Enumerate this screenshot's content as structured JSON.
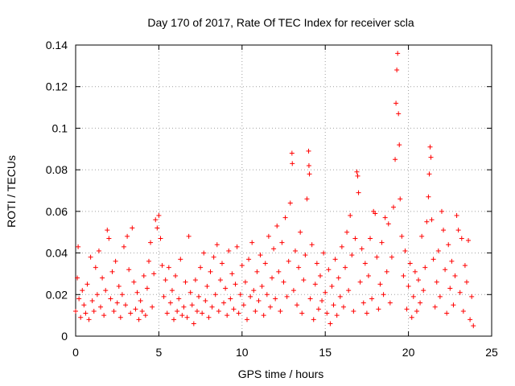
{
  "chart_data": {
    "type": "scatter",
    "title": "Day 170 of 2017, Rate Of TEC Index for receiver scla",
    "xlabel": "GPS time / hours",
    "ylabel": "ROTI / TECUs",
    "xlim": [
      0,
      25
    ],
    "ylim": [
      0,
      0.14
    ],
    "xticks": [
      0,
      5,
      10,
      15,
      20,
      25
    ],
    "xtick_labels": [
      "0",
      "5",
      "10",
      "15",
      "20",
      "25"
    ],
    "yticks": [
      0,
      0.02,
      0.04,
      0.06,
      0.08,
      0.1,
      0.12,
      0.14
    ],
    "ytick_labels": [
      "0",
      "0.02",
      "0.04",
      "0.06",
      "0.08",
      "0.1",
      "0.12",
      "0.14"
    ],
    "grid": true,
    "marker": "+",
    "color": "#ff0000",
    "series": [
      {
        "name": "ROTI",
        "points": [
          [
            0.0,
            0.012
          ],
          [
            0.1,
            0.028
          ],
          [
            0.15,
            0.043
          ],
          [
            0.2,
            0.018
          ],
          [
            0.3,
            0.009
          ],
          [
            0.4,
            0.022
          ],
          [
            0.5,
            0.015
          ],
          [
            0.6,
            0.011
          ],
          [
            0.7,
            0.025
          ],
          [
            0.8,
            0.008
          ],
          [
            0.9,
            0.038
          ],
          [
            1.0,
            0.017
          ],
          [
            1.1,
            0.012
          ],
          [
            1.2,
            0.033
          ],
          [
            1.3,
            0.02
          ],
          [
            1.4,
            0.041
          ],
          [
            1.5,
            0.014
          ],
          [
            1.6,
            0.028
          ],
          [
            1.7,
            0.01
          ],
          [
            1.8,
            0.022
          ],
          [
            1.9,
            0.051
          ],
          [
            2.0,
            0.047
          ],
          [
            2.1,
            0.018
          ],
          [
            2.2,
            0.031
          ],
          [
            2.3,
            0.012
          ],
          [
            2.4,
            0.036
          ],
          [
            2.5,
            0.016
          ],
          [
            2.6,
            0.024
          ],
          [
            2.7,
            0.009
          ],
          [
            2.8,
            0.02
          ],
          [
            2.9,
            0.043
          ],
          [
            3.0,
            0.015
          ],
          [
            3.1,
            0.048
          ],
          [
            3.2,
            0.032
          ],
          [
            3.3,
            0.011
          ],
          [
            3.4,
            0.052
          ],
          [
            3.5,
            0.026
          ],
          [
            3.6,
            0.013
          ],
          [
            3.7,
            0.021
          ],
          [
            3.8,
            0.008
          ],
          [
            3.9,
            0.017
          ],
          [
            4.0,
            0.012
          ],
          [
            4.1,
            0.029
          ],
          [
            4.2,
            0.01
          ],
          [
            4.3,
            0.023
          ],
          [
            4.4,
            0.036
          ],
          [
            4.5,
            0.045
          ],
          [
            4.6,
            0.014
          ],
          [
            4.7,
            0.03
          ],
          [
            4.8,
            0.056
          ],
          [
            4.9,
            0.052
          ],
          [
            5.0,
            0.058
          ],
          [
            5.1,
            0.047
          ],
          [
            5.2,
            0.034
          ],
          [
            5.3,
            0.019
          ],
          [
            5.4,
            0.027
          ],
          [
            5.5,
            0.011
          ],
          [
            5.6,
            0.033
          ],
          [
            5.7,
            0.016
          ],
          [
            5.8,
            0.022
          ],
          [
            5.9,
            0.008
          ],
          [
            6.0,
            0.029
          ],
          [
            6.1,
            0.012
          ],
          [
            6.2,
            0.018
          ],
          [
            6.3,
            0.037
          ],
          [
            6.4,
            0.01
          ],
          [
            6.5,
            0.014
          ],
          [
            6.6,
            0.026
          ],
          [
            6.7,
            0.009
          ],
          [
            6.8,
            0.048
          ],
          [
            6.9,
            0.021
          ],
          [
            7.0,
            0.015
          ],
          [
            7.1,
            0.006
          ],
          [
            7.2,
            0.027
          ],
          [
            7.3,
            0.012
          ],
          [
            7.4,
            0.019
          ],
          [
            7.5,
            0.033
          ],
          [
            7.6,
            0.011
          ],
          [
            7.7,
            0.04
          ],
          [
            7.8,
            0.017
          ],
          [
            7.9,
            0.024
          ],
          [
            8.0,
            0.009
          ],
          [
            8.1,
            0.031
          ],
          [
            8.2,
            0.014
          ],
          [
            8.3,
            0.038
          ],
          [
            8.4,
            0.02
          ],
          [
            8.5,
            0.044
          ],
          [
            8.6,
            0.012
          ],
          [
            8.7,
            0.027
          ],
          [
            8.8,
            0.035
          ],
          [
            8.9,
            0.016
          ],
          [
            9.0,
            0.023
          ],
          [
            9.1,
            0.01
          ],
          [
            9.2,
            0.041
          ],
          [
            9.3,
            0.018
          ],
          [
            9.4,
            0.03
          ],
          [
            9.5,
            0.013
          ],
          [
            9.6,
            0.025
          ],
          [
            9.7,
            0.043
          ],
          [
            9.8,
            0.011
          ],
          [
            9.9,
            0.02
          ],
          [
            10.0,
            0.034
          ],
          [
            10.1,
            0.015
          ],
          [
            10.2,
            0.026
          ],
          [
            10.3,
            0.008
          ],
          [
            10.4,
            0.037
          ],
          [
            10.5,
            0.019
          ],
          [
            10.6,
            0.045
          ],
          [
            10.7,
            0.022
          ],
          [
            10.8,
            0.012
          ],
          [
            10.9,
            0.031
          ],
          [
            11.0,
            0.017
          ],
          [
            11.1,
            0.039
          ],
          [
            11.2,
            0.024
          ],
          [
            11.3,
            0.01
          ],
          [
            11.4,
            0.035
          ],
          [
            11.5,
            0.02
          ],
          [
            11.6,
            0.048
          ],
          [
            11.7,
            0.014
          ],
          [
            11.8,
            0.028
          ],
          [
            11.9,
            0.042
          ],
          [
            12.0,
            0.018
          ],
          [
            12.1,
            0.053
          ],
          [
            12.2,
            0.031
          ],
          [
            12.3,
            0.012
          ],
          [
            12.4,
            0.045
          ],
          [
            12.5,
            0.026
          ],
          [
            12.6,
            0.057
          ],
          [
            12.7,
            0.019
          ],
          [
            12.8,
            0.036
          ],
          [
            12.9,
            0.064
          ],
          [
            13.0,
            0.088
          ],
          [
            13.02,
            0.083
          ],
          [
            13.1,
            0.022
          ],
          [
            13.2,
            0.041
          ],
          [
            13.3,
            0.015
          ],
          [
            13.4,
            0.033
          ],
          [
            13.5,
            0.05
          ],
          [
            13.6,
            0.011
          ],
          [
            13.7,
            0.027
          ],
          [
            13.8,
            0.039
          ],
          [
            13.9,
            0.066
          ],
          [
            14.0,
            0.089
          ],
          [
            14.02,
            0.082
          ],
          [
            14.05,
            0.078
          ],
          [
            14.1,
            0.018
          ],
          [
            14.2,
            0.044
          ],
          [
            14.3,
            0.008
          ],
          [
            14.4,
            0.025
          ],
          [
            14.5,
            0.035
          ],
          [
            14.6,
            0.013
          ],
          [
            14.7,
            0.029
          ],
          [
            14.8,
            0.017
          ],
          [
            14.9,
            0.04
          ],
          [
            15.0,
            0.021
          ],
          [
            15.1,
            0.011
          ],
          [
            15.2,
            0.032
          ],
          [
            15.3,
            0.006
          ],
          [
            15.4,
            0.024
          ],
          [
            15.5,
            0.015
          ],
          [
            15.6,
            0.037
          ],
          [
            15.7,
            0.01
          ],
          [
            15.8,
            0.028
          ],
          [
            15.9,
            0.019
          ],
          [
            16.0,
            0.043
          ],
          [
            16.1,
            0.014
          ],
          [
            16.2,
            0.033
          ],
          [
            16.3,
            0.05
          ],
          [
            16.4,
            0.022
          ],
          [
            16.5,
            0.058
          ],
          [
            16.6,
            0.039
          ],
          [
            16.7,
            0.012
          ],
          [
            16.8,
            0.047
          ],
          [
            16.9,
            0.079
          ],
          [
            16.95,
            0.077
          ],
          [
            17.0,
            0.069
          ],
          [
            17.1,
            0.026
          ],
          [
            17.2,
            0.042
          ],
          [
            17.3,
            0.016
          ],
          [
            17.4,
            0.035
          ],
          [
            17.5,
            0.011
          ],
          [
            17.6,
            0.029
          ],
          [
            17.7,
            0.047
          ],
          [
            17.8,
            0.018
          ],
          [
            17.9,
            0.06
          ],
          [
            18.0,
            0.059
          ],
          [
            18.1,
            0.038
          ],
          [
            18.2,
            0.013
          ],
          [
            18.3,
            0.025
          ],
          [
            18.4,
            0.045
          ],
          [
            18.5,
            0.02
          ],
          [
            18.6,
            0.057
          ],
          [
            18.7,
            0.031
          ],
          [
            18.8,
            0.054
          ],
          [
            18.9,
            0.016
          ],
          [
            19.0,
            0.038
          ],
          [
            19.1,
            0.062
          ],
          [
            19.2,
            0.085
          ],
          [
            19.25,
            0.112
          ],
          [
            19.3,
            0.128
          ],
          [
            19.35,
            0.136
          ],
          [
            19.4,
            0.107
          ],
          [
            19.45,
            0.092
          ],
          [
            19.5,
            0.066
          ],
          [
            19.6,
            0.048
          ],
          [
            19.7,
            0.029
          ],
          [
            19.8,
            0.041
          ],
          [
            19.9,
            0.013
          ],
          [
            20.0,
            0.024
          ],
          [
            20.1,
            0.035
          ],
          [
            20.2,
            0.009
          ],
          [
            20.3,
            0.019
          ],
          [
            20.4,
            0.031
          ],
          [
            20.5,
            0.012
          ],
          [
            20.6,
            0.027
          ],
          [
            20.7,
            0.016
          ],
          [
            20.8,
            0.048
          ],
          [
            20.9,
            0.022
          ],
          [
            21.0,
            0.033
          ],
          [
            21.1,
            0.055
          ],
          [
            21.2,
            0.067
          ],
          [
            21.25,
            0.078
          ],
          [
            21.3,
            0.091
          ],
          [
            21.35,
            0.086
          ],
          [
            21.4,
            0.056
          ],
          [
            21.5,
            0.037
          ],
          [
            21.6,
            0.014
          ],
          [
            21.7,
            0.026
          ],
          [
            21.8,
            0.041
          ],
          [
            21.9,
            0.019
          ],
          [
            22.0,
            0.06
          ],
          [
            22.1,
            0.051
          ],
          [
            22.2,
            0.032
          ],
          [
            22.3,
            0.011
          ],
          [
            22.4,
            0.044
          ],
          [
            22.5,
            0.023
          ],
          [
            22.6,
            0.036
          ],
          [
            22.7,
            0.015
          ],
          [
            22.8,
            0.029
          ],
          [
            22.9,
            0.058
          ],
          [
            23.0,
            0.051
          ],
          [
            23.1,
            0.021
          ],
          [
            23.2,
            0.047
          ],
          [
            23.3,
            0.012
          ],
          [
            23.4,
            0.034
          ],
          [
            23.5,
            0.026
          ],
          [
            23.6,
            0.046
          ],
          [
            23.7,
            0.008
          ],
          [
            23.8,
            0.019
          ],
          [
            23.9,
            0.005
          ]
        ]
      }
    ]
  }
}
